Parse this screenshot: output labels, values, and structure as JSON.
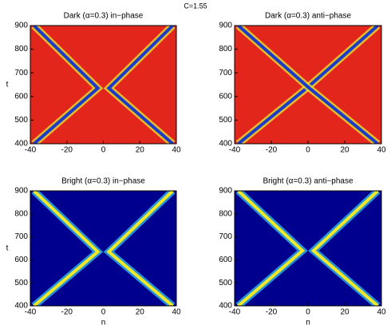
{
  "title": "C=1.55",
  "chart_data": [
    {
      "type": "line",
      "title": "Dark (α=0.3) in−phase",
      "ylabel": "t",
      "xlim": [
        -40,
        40
      ],
      "xticks": [
        -40,
        -20,
        0,
        20,
        40
      ],
      "ylim": [
        400,
        900
      ],
      "yticks": [
        400,
        500,
        600,
        700,
        800,
        900
      ],
      "background": "#e3261b",
      "color": "#1a3cc8",
      "edge_color": "#e8e030",
      "series": [
        {
          "x": [
            -38,
            -3,
            -38
          ],
          "y": [
            400,
            635,
            900
          ]
        },
        {
          "x": [
            38,
            3,
            38
          ],
          "y": [
            400,
            635,
            900
          ]
        }
      ]
    },
    {
      "type": "line",
      "title": "Dark (α=0.3) anti−phase",
      "xlim": [
        -40,
        40
      ],
      "xticks": [
        -40,
        -20,
        0,
        20,
        40
      ],
      "ylim": [
        400,
        900
      ],
      "yticks": [
        400,
        500,
        600,
        700,
        800,
        900
      ],
      "background": "#e3261b",
      "color": "#1a3cc8",
      "edge_color": "#e8e030",
      "series": [
        {
          "x": [
            -38,
            0,
            38
          ],
          "y": [
            400,
            640,
            900
          ]
        },
        {
          "x": [
            38,
            0,
            -38
          ],
          "y": [
            400,
            640,
            900
          ]
        }
      ]
    },
    {
      "type": "line",
      "title": "Bright (α=0.3) in−phase",
      "xlabel": "n",
      "ylabel": "t",
      "xlim": [
        -40,
        40
      ],
      "xticks": [
        -40,
        -20,
        0,
        20,
        40
      ],
      "ylim": [
        400,
        900
      ],
      "yticks": [
        400,
        500,
        600,
        700,
        800,
        900
      ],
      "background": "#00008f",
      "color": "#f0e828",
      "edge_color": "#30b8e8",
      "series": [
        {
          "x": [
            -38,
            -3,
            -38
          ],
          "y": [
            400,
            635,
            900
          ]
        },
        {
          "x": [
            38,
            3,
            38
          ],
          "y": [
            400,
            635,
            900
          ]
        }
      ]
    },
    {
      "type": "line",
      "title": "Bright (α=0.3) anti−phase",
      "xlabel": "n",
      "xlim": [
        -40,
        40
      ],
      "xticks": [
        -40,
        -20,
        0,
        20,
        40
      ],
      "ylim": [
        400,
        900
      ],
      "yticks": [
        400,
        500,
        600,
        700,
        800,
        900
      ],
      "background": "#00008f",
      "color": "#f0e828",
      "edge_color": "#30b8e8",
      "series": [
        {
          "x": [
            -38,
            -3,
            -38
          ],
          "y": [
            400,
            640,
            900
          ]
        },
        {
          "x": [
            38,
            3,
            38
          ],
          "y": [
            400,
            640,
            900
          ]
        }
      ]
    }
  ]
}
